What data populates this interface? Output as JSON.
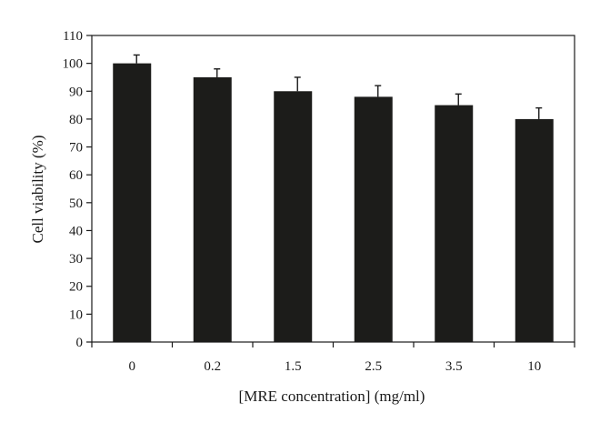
{
  "chart_data": {
    "type": "bar",
    "title": "",
    "xlabel": "[MRE concentration] (mg/ml)",
    "ylabel": "Cell viability (%)",
    "categories": [
      "0",
      "0.2",
      "1.5",
      "2.5",
      "3.5",
      "10"
    ],
    "values": [
      100,
      95,
      90,
      88,
      85,
      80
    ],
    "errors": [
      3,
      3,
      5,
      4,
      4,
      4
    ],
    "ylim": [
      0,
      110
    ],
    "yticks": [
      0,
      10,
      20,
      30,
      40,
      50,
      60,
      70,
      80,
      90,
      100,
      110
    ],
    "grid": false,
    "bar_color": "#1c1c1a"
  }
}
